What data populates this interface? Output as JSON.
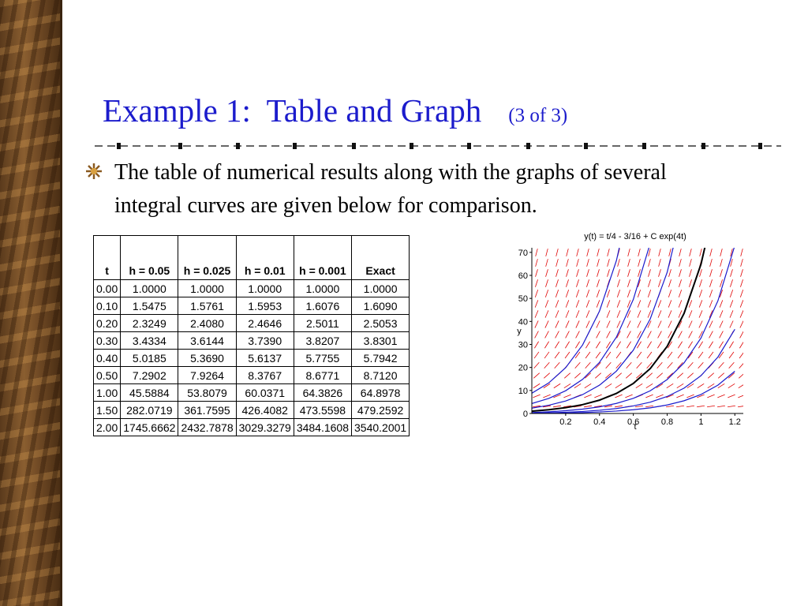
{
  "header": {
    "title": "Example 1:  Table and Graph",
    "subtitle": "(3 of 3)"
  },
  "bullets": [
    "The table of numerical results along with the graphs of several integral curves are given below for comparison."
  ],
  "table": {
    "columns": [
      "t",
      "h = 0.05",
      "h = 0.025",
      "h = 0.01",
      "h = 0.001",
      "Exact"
    ],
    "rows": [
      [
        "0.00",
        "1.0000",
        "1.0000",
        "1.0000",
        "1.0000",
        "1.0000"
      ],
      [
        "0.10",
        "1.5475",
        "1.5761",
        "1.5953",
        "1.6076",
        "1.6090"
      ],
      [
        "0.20",
        "2.3249",
        "2.4080",
        "2.4646",
        "2.5011",
        "2.5053"
      ],
      [
        "0.30",
        "3.4334",
        "3.6144",
        "3.7390",
        "3.8207",
        "3.8301"
      ],
      [
        "0.40",
        "5.0185",
        "5.3690",
        "5.6137",
        "5.7755",
        "5.7942"
      ],
      [
        "0.50",
        "7.2902",
        "7.9264",
        "8.3767",
        "8.6771",
        "8.7120"
      ],
      [
        "1.00",
        "45.5884",
        "53.8079",
        "60.0371",
        "64.3826",
        "64.8978"
      ],
      [
        "1.50",
        "282.0719",
        "361.7595",
        "426.4082",
        "473.5598",
        "479.2592"
      ],
      [
        "2.00",
        "1745.6662",
        "2432.7878",
        "3029.3279",
        "3484.1608",
        "3540.2001"
      ]
    ]
  },
  "chart_data": {
    "type": "line",
    "title": "y(t) = t/4 - 3/16 + C exp(4t)",
    "x_label": "t",
    "y_label": "y",
    "x": [
      0,
      0.1,
      0.2,
      0.3,
      0.4,
      0.5,
      0.6,
      0.7,
      0.8,
      0.9,
      1.0,
      1.1,
      1.2
    ],
    "series": [
      {
        "color": "#1a1acc",
        "values": [
          0.05,
          0.06,
          0.2,
          0.39,
          0.66,
          1.05,
          1.62,
          2.45,
          3.69,
          5.53,
          8.25,
          12.31,
          18.34
        ]
      },
      {
        "color": "#1a1acc",
        "values": [
          0.11,
          0.29,
          0.53,
          0.88,
          1.4,
          2.15,
          3.27,
          4.92,
          7.37,
          11.02,
          16.44,
          24.52,
          36.57
        ]
      },
      {
        "color": "#1a1acc",
        "values": [
          0.41,
          0.73,
          1.2,
          1.88,
          2.88,
          4.37,
          6.58,
          9.85,
          14.73,
          21.99,
          32.82,
          48.96,
          73.02
        ]
      },
      {
        "color": "#000000",
        "values": [
          1.0,
          1.61,
          2.51,
          3.83,
          5.79,
          8.71,
          13.05,
          19.52,
          29.14,
          43.5,
          64.9,
          96.81,
          null
        ]
      },
      {
        "color": "#1a1acc",
        "values": [
          2.31,
          3.57,
          5.43,
          8.19,
          12.29,
          18.41,
          27.52,
          41.1,
          61.35,
          91.53,
          null,
          null,
          null
        ]
      },
      {
        "color": "#1a1acc",
        "values": [
          4.31,
          6.55,
          9.88,
          14.83,
          22.2,
          33.19,
          49.57,
          73.99,
          null,
          null,
          null,
          null,
          null
        ]
      },
      {
        "color": "#1a1acc",
        "values": [
          8.81,
          13.26,
          19.89,
          29.77,
          44.49,
          66.44,
          99.17,
          null,
          null,
          null,
          null,
          null,
          null
        ]
      }
    ],
    "xlim": [
      0,
      1.25
    ],
    "ylim": [
      0,
      72
    ],
    "xticks": [
      0.2,
      0.4,
      0.6,
      0.8,
      1,
      1.2
    ],
    "yticks": [
      0,
      10,
      20,
      30,
      40,
      50,
      60,
      70
    ],
    "field_color": "#e00000"
  }
}
